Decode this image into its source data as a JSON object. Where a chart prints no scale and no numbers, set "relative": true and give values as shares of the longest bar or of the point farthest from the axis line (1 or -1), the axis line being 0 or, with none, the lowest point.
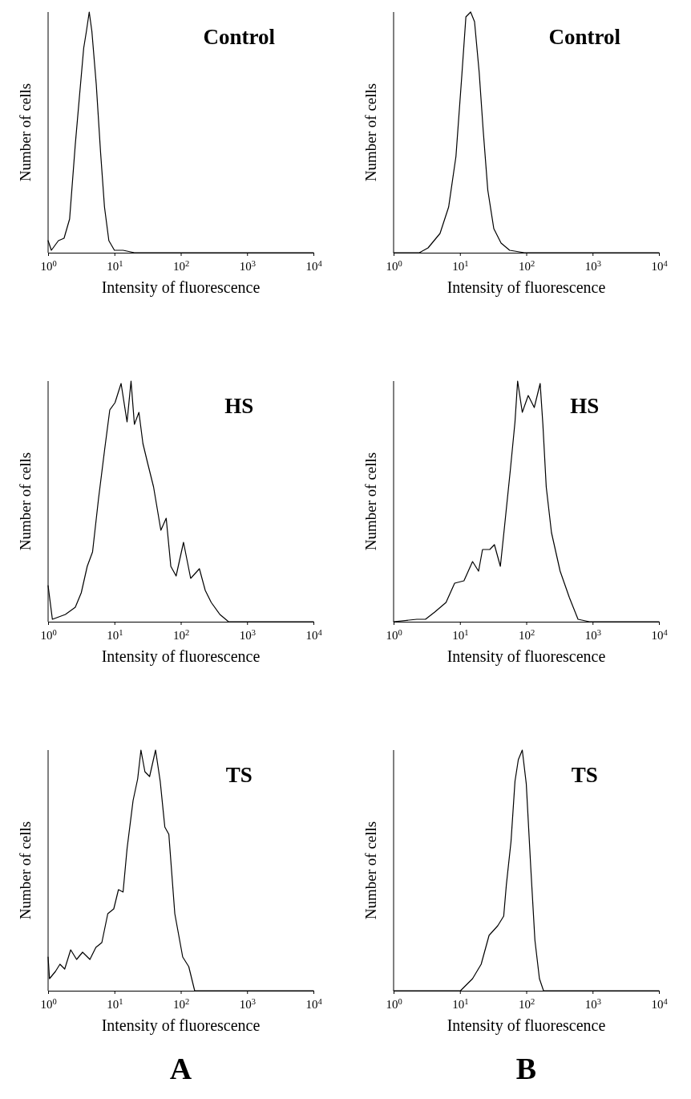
{
  "chart_data": [
    {
      "type": "line",
      "title": "Control",
      "xlabel": "Intensity of fluorescence",
      "ylabel": "Number of cells",
      "log": "x",
      "relative": true,
      "xlim": [
        1,
        10000
      ],
      "xticks": [
        {
          "value": 1,
          "label": "10$^{0}$"
        },
        {
          "value": 10,
          "label": "10$^{1}$"
        },
        {
          "value": 100,
          "label": "10$^{2}$"
        },
        {
          "value": 1000,
          "label": "10$^{3}$"
        },
        {
          "value": 10000,
          "label": "10$^{4}$"
        }
      ],
      "series": [
        {
          "color": "#000000",
          "x": [
            1,
            1.12,
            1.43,
            1.74,
            2.11,
            2.57,
            2.95,
            3.44,
            3.78,
            4.17,
            4.57,
            5.32,
            6.17,
            7.08,
            8.24,
            10,
            13.5,
            20,
            100,
            1000,
            10000
          ],
          "values": [
            0.05,
            0.01,
            0.05,
            0.06,
            0.14,
            0.45,
            0.64,
            0.85,
            0.92,
            1,
            0.92,
            0.7,
            0.42,
            0.19,
            0.05,
            0.01,
            0.01,
            0,
            0,
            0,
            0
          ]
        }
      ]
    },
    {
      "type": "line",
      "title": "Control",
      "xlabel": "Intensity of fluorescence",
      "ylabel": "Number of cells",
      "log": "x",
      "relative": true,
      "xlim": [
        1,
        10000
      ],
      "xticks": [
        {
          "value": 1,
          "label": "10$^{0}$"
        },
        {
          "value": 10,
          "label": "10$^{1}$"
        },
        {
          "value": 100,
          "label": "10$^{2}$"
        },
        {
          "value": 1000,
          "label": "10$^{3}$"
        },
        {
          "value": 10000,
          "label": "10$^{4}$"
        }
      ],
      "series": [
        {
          "color": "#000000",
          "x": [
            1,
            2.45,
            3.31,
            5.01,
            6.76,
            8.71,
            10.7,
            12.3,
            14.5,
            16.6,
            19.5,
            22.4,
            26.3,
            32.4,
            41.7,
            56.2,
            93.3,
            1000,
            10000
          ],
          "values": [
            0,
            0,
            0.02,
            0.08,
            0.19,
            0.4,
            0.74,
            0.98,
            1,
            0.96,
            0.75,
            0.51,
            0.26,
            0.1,
            0.04,
            0.01,
            0,
            0,
            0
          ]
        }
      ]
    },
    {
      "type": "line",
      "title": "HS",
      "xlabel": "Intensity of fluorescence",
      "ylabel": "Number of cells",
      "log": "x",
      "relative": true,
      "xlim": [
        1,
        10000
      ],
      "xticks": [
        {
          "value": 1,
          "label": "10$^{0}$"
        },
        {
          "value": 10,
          "label": "10$^{1}$"
        },
        {
          "value": 100,
          "label": "10$^{2}$"
        },
        {
          "value": 1000,
          "label": "10$^{3}$"
        },
        {
          "value": 10000,
          "label": "10$^{4}$"
        }
      ],
      "series": [
        {
          "color": "#000000",
          "x": [
            1,
            1.16,
            1.82,
            2.57,
            3.16,
            3.89,
            4.68,
            5.75,
            7.08,
            8.51,
            10.2,
            12.6,
            15.5,
            17.8,
            20,
            23.4,
            26.9,
            31.6,
            38.9,
            50.1,
            60.3,
            70.8,
            85.1,
            110,
            141,
            191,
            234,
            288,
            389,
            525,
            10000
          ],
          "values": [
            0.15,
            0.01,
            0.03,
            0.06,
            0.12,
            0.23,
            0.29,
            0.51,
            0.71,
            0.88,
            0.91,
            0.99,
            0.83,
            1,
            0.82,
            0.87,
            0.74,
            0.66,
            0.56,
            0.38,
            0.43,
            0.23,
            0.19,
            0.33,
            0.18,
            0.22,
            0.13,
            0.08,
            0.03,
            0,
            0
          ]
        }
      ]
    },
    {
      "type": "line",
      "title": "HS",
      "xlabel": "Intensity of fluorescence",
      "ylabel": "Number of cells",
      "log": "x",
      "relative": true,
      "xlim": [
        1,
        10000
      ],
      "xticks": [
        {
          "value": 1,
          "label": "10$^{0}$"
        },
        {
          "value": 10,
          "label": "10$^{1}$"
        },
        {
          "value": 100,
          "label": "10$^{2}$"
        },
        {
          "value": 1000,
          "label": "10$^{3}$"
        },
        {
          "value": 10000,
          "label": "10$^{4}$"
        }
      ],
      "series": [
        {
          "color": "#000000",
          "x": [
            1,
            2.24,
            3.02,
            4.17,
            6.17,
            8.32,
            11.5,
            15.5,
            19.1,
            21.9,
            28.2,
            33.1,
            40.7,
            46.8,
            57.5,
            67.6,
            74.1,
            87.1,
            107,
            132,
            162,
            178,
            200,
            240,
            324,
            447,
            603,
            891,
            10000
          ],
          "values": [
            0,
            0.01,
            0.01,
            0.04,
            0.08,
            0.16,
            0.17,
            0.25,
            0.21,
            0.3,
            0.3,
            0.32,
            0.23,
            0.39,
            0.63,
            0.83,
            1,
            0.87,
            0.94,
            0.89,
            0.99,
            0.82,
            0.56,
            0.37,
            0.21,
            0.1,
            0.01,
            0,
            0
          ]
        }
      ]
    },
    {
      "type": "line",
      "title": "TS",
      "xlabel": "Intensity of fluorescence",
      "ylabel": "Number of cells",
      "log": "x",
      "relative": true,
      "xlim": [
        1,
        10000
      ],
      "xticks": [
        {
          "value": 1,
          "label": "10$^{0}$"
        },
        {
          "value": 10,
          "label": "10$^{1}$"
        },
        {
          "value": 100,
          "label": "10$^{2}$"
        },
        {
          "value": 1000,
          "label": "10$^{3}$"
        },
        {
          "value": 10000,
          "label": "10$^{4}$"
        }
      ],
      "annotations": [
        "A"
      ],
      "series": [
        {
          "color": "#000000",
          "x": [
            1,
            1.05,
            1.29,
            1.51,
            1.78,
            2.19,
            2.69,
            3.31,
            4.27,
            5.25,
            6.46,
            7.94,
            9.77,
            11.5,
            13.5,
            15.5,
            19.1,
            22.4,
            25.1,
            28.8,
            33.9,
            41.7,
            49,
            57.5,
            66.1,
            81.3,
            107,
            132,
            162,
            10000
          ],
          "values": [
            0.14,
            0.05,
            0.08,
            0.11,
            0.09,
            0.17,
            0.13,
            0.16,
            0.13,
            0.18,
            0.2,
            0.32,
            0.34,
            0.42,
            0.41,
            0.59,
            0.79,
            0.88,
            1,
            0.91,
            0.89,
            1,
            0.87,
            0.68,
            0.65,
            0.32,
            0.14,
            0.1,
            0,
            0
          ]
        }
      ]
    },
    {
      "type": "line",
      "title": "TS",
      "xlabel": "Intensity of fluorescence",
      "ylabel": "Number of cells",
      "log": "x",
      "relative": true,
      "xlim": [
        1,
        10000
      ],
      "xticks": [
        {
          "value": 1,
          "label": "10$^{0}$"
        },
        {
          "value": 10,
          "label": "10$^{1}$"
        },
        {
          "value": 100,
          "label": "10$^{2}$"
        },
        {
          "value": 1000,
          "label": "10$^{3}$"
        },
        {
          "value": 10000,
          "label": "10$^{4}$"
        }
      ],
      "annotations": [
        "B"
      ],
      "series": [
        {
          "color": "#000000",
          "x": [
            1,
            10.2,
            15.5,
            20.9,
            27.5,
            37.2,
            45.7,
            50.1,
            58.9,
            67.6,
            75.9,
            87.1,
            100,
            117,
            135,
            158,
            182,
            10000
          ],
          "values": [
            0,
            0,
            0.05,
            0.11,
            0.23,
            0.27,
            0.31,
            0.44,
            0.62,
            0.87,
            0.96,
            1,
            0.86,
            0.51,
            0.21,
            0.05,
            0,
            0
          ]
        }
      ]
    }
  ]
}
